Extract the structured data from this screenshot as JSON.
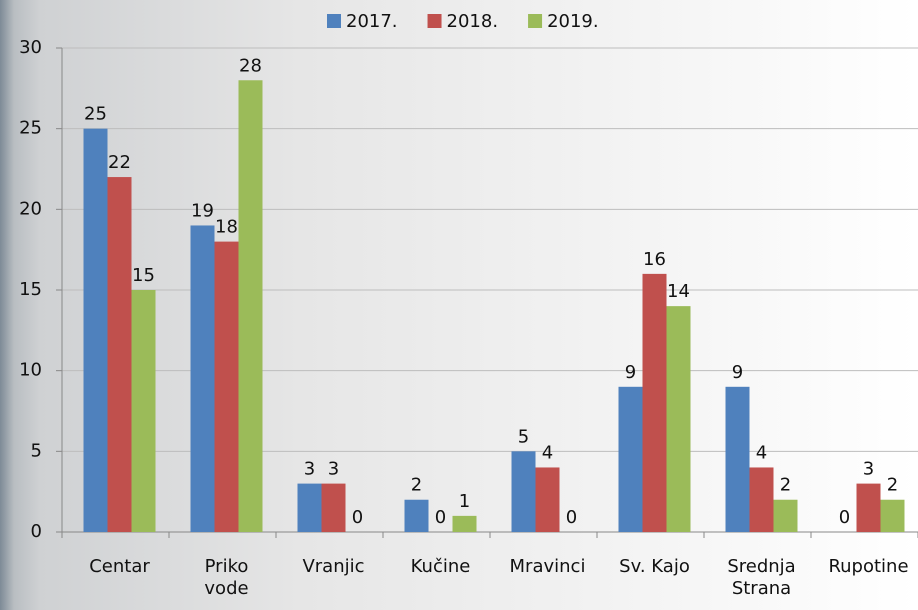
{
  "chart_data": {
    "type": "bar",
    "categories": [
      "Centar",
      "Priko vode",
      "Vranjic",
      "Kučine",
      "Mravinci",
      "Sv. Kajo",
      "Srednja Strana",
      "Rupotine"
    ],
    "series": [
      {
        "name": "2017.",
        "color": "#4f81bd",
        "values": [
          25,
          19,
          3,
          2,
          5,
          9,
          9,
          0
        ]
      },
      {
        "name": "2018.",
        "color": "#c0504d",
        "values": [
          22,
          18,
          3,
          0,
          4,
          16,
          4,
          3
        ]
      },
      {
        "name": "2019.",
        "color": "#9bbb59",
        "values": [
          15,
          28,
          0,
          1,
          0,
          14,
          2,
          2
        ]
      }
    ],
    "ylim": [
      0,
      30
    ],
    "yticks": [
      0,
      5,
      10,
      15,
      20,
      25,
      30
    ],
    "grid": true,
    "legend": "top"
  }
}
